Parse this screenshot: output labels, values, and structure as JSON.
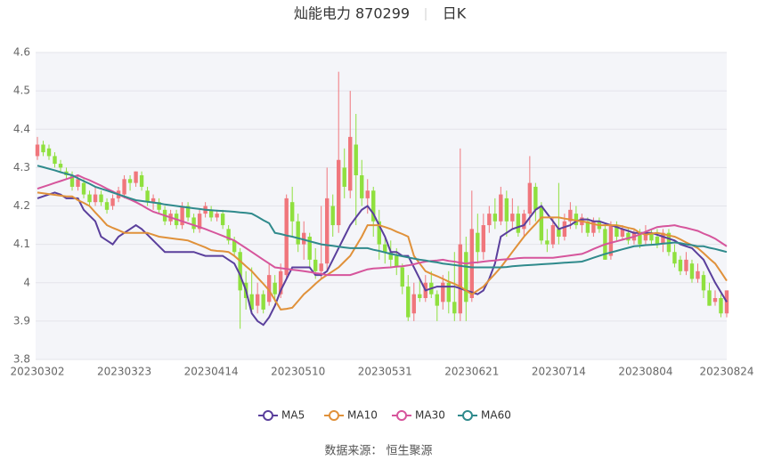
{
  "chart_data": {
    "type": "candlestick",
    "title": "灿能电力 870299",
    "period": "日K",
    "source": "数据来源： 恒生聚源",
    "up_color": "#f0767c",
    "down_color": "#8fe03e",
    "grid": true,
    "plot_background": "#f4f5f9",
    "ylim": [
      3.8,
      4.6
    ],
    "yticks": [
      3.8,
      3.9,
      4,
      4.1,
      4.2,
      4.3,
      4.4,
      4.5,
      4.6
    ],
    "categories": [
      "20230302",
      null,
      null,
      null,
      null,
      null,
      null,
      null,
      null,
      null,
      null,
      null,
      null,
      null,
      null,
      "20230323",
      null,
      null,
      null,
      null,
      null,
      null,
      null,
      null,
      null,
      null,
      null,
      null,
      null,
      null,
      "20230414",
      null,
      null,
      null,
      null,
      null,
      null,
      null,
      null,
      null,
      null,
      null,
      null,
      null,
      null,
      "20230510",
      null,
      null,
      null,
      null,
      null,
      null,
      null,
      null,
      null,
      null,
      null,
      null,
      null,
      null,
      "20230531",
      null,
      null,
      null,
      null,
      null,
      null,
      null,
      null,
      null,
      null,
      null,
      null,
      null,
      null,
      "20230621",
      null,
      null,
      null,
      null,
      null,
      null,
      null,
      null,
      null,
      null,
      null,
      null,
      null,
      null,
      "20230714",
      null,
      null,
      null,
      null,
      null,
      null,
      null,
      null,
      null,
      null,
      null,
      null,
      null,
      null,
      "20230804",
      null,
      null,
      null,
      null,
      null,
      null,
      null,
      null,
      null,
      null,
      null,
      null,
      null,
      "20230824"
    ],
    "candles": [
      [
        4.33,
        4.36,
        4.32,
        4.38
      ],
      [
        4.36,
        4.34,
        4.33,
        4.37
      ],
      [
        4.35,
        4.33,
        4.32,
        4.36
      ],
      [
        4.33,
        4.31,
        4.3,
        4.34
      ],
      [
        4.31,
        4.3,
        4.29,
        4.32
      ],
      [
        4.29,
        4.28,
        4.27,
        4.3
      ],
      [
        4.28,
        4.25,
        4.24,
        4.29
      ],
      [
        4.25,
        4.27,
        4.24,
        4.28
      ],
      [
        4.26,
        4.23,
        4.22,
        4.27
      ],
      [
        4.23,
        4.21,
        4.2,
        4.24
      ],
      [
        4.21,
        4.23,
        4.2,
        4.25
      ],
      [
        4.23,
        4.21,
        4.2,
        4.24
      ],
      [
        4.21,
        4.19,
        4.18,
        4.22
      ],
      [
        4.2,
        4.22,
        4.19,
        4.23
      ],
      [
        4.22,
        4.24,
        4.21,
        4.25
      ],
      [
        4.23,
        4.27,
        4.22,
        4.28
      ],
      [
        4.27,
        4.26,
        4.24,
        4.28
      ],
      [
        4.26,
        4.29,
        4.25,
        4.29
      ],
      [
        4.28,
        4.25,
        4.24,
        4.29
      ],
      [
        4.24,
        4.21,
        4.2,
        4.25
      ],
      [
        4.21,
        4.22,
        4.19,
        4.23
      ],
      [
        4.21,
        4.19,
        4.18,
        4.22
      ],
      [
        4.19,
        4.16,
        4.15,
        4.2
      ],
      [
        4.16,
        4.18,
        4.15,
        4.19
      ],
      [
        4.18,
        4.15,
        4.14,
        4.19
      ],
      [
        4.15,
        4.2,
        4.14,
        4.21
      ],
      [
        4.2,
        4.17,
        4.16,
        4.21
      ],
      [
        4.17,
        4.14,
        4.13,
        4.18
      ],
      [
        4.14,
        4.18,
        4.13,
        4.19
      ],
      [
        4.18,
        4.2,
        4.17,
        4.21
      ],
      [
        4.19,
        4.17,
        4.16,
        4.2
      ],
      [
        4.17,
        4.18,
        4.16,
        4.19
      ],
      [
        4.18,
        4.15,
        4.14,
        4.19
      ],
      [
        4.14,
        4.11,
        4.1,
        4.15
      ],
      [
        4.11,
        4.08,
        4.07,
        4.12
      ],
      [
        4.08,
        3.98,
        3.88,
        4.09
      ],
      [
        4.0,
        3.96,
        3.93,
        4.03
      ],
      [
        3.97,
        3.93,
        3.92,
        4.04
      ],
      [
        3.94,
        3.97,
        3.92,
        4.0
      ],
      [
        3.97,
        3.93,
        3.92,
        3.98
      ],
      [
        3.95,
        4.02,
        3.94,
        4.05
      ],
      [
        4.0,
        3.97,
        3.95,
        4.02
      ],
      [
        3.97,
        4.03,
        3.96,
        4.05
      ],
      [
        4.02,
        4.22,
        4.01,
        4.23
      ],
      [
        4.21,
        4.16,
        4.12,
        4.25
      ],
      [
        4.16,
        4.1,
        4.08,
        4.18
      ],
      [
        4.1,
        4.13,
        4.06,
        4.16
      ],
      [
        4.12,
        4.06,
        4.04,
        4.13
      ],
      [
        4.06,
        4.03,
        4.01,
        4.09
      ],
      [
        4.03,
        4.05,
        4.01,
        4.2
      ],
      [
        4.05,
        4.22,
        4.03,
        4.3
      ],
      [
        4.2,
        4.15,
        4.12,
        4.23
      ],
      [
        4.15,
        4.32,
        4.13,
        4.55
      ],
      [
        4.3,
        4.25,
        4.22,
        4.35
      ],
      [
        4.24,
        4.38,
        4.22,
        4.5
      ],
      [
        4.36,
        4.28,
        4.15,
        4.44
      ],
      [
        4.28,
        4.22,
        4.2,
        4.32
      ],
      [
        4.22,
        4.24,
        4.18,
        4.27
      ],
      [
        4.24,
        4.16,
        4.12,
        4.25
      ],
      [
        4.16,
        4.1,
        4.06,
        4.19
      ],
      [
        4.1,
        4.08,
        4.05,
        4.12
      ],
      [
        4.08,
        4.06,
        4.04,
        4.11
      ],
      [
        4.07,
        4.04,
        4.02,
        4.09
      ],
      [
        4.04,
        3.99,
        3.97,
        4.05
      ],
      [
        3.99,
        3.91,
        3.9,
        4.02
      ],
      [
        3.92,
        3.97,
        3.9,
        4.0
      ],
      [
        3.97,
        3.96,
        3.95,
        4.01
      ],
      [
        3.96,
        4.0,
        3.95,
        4.02
      ],
      [
        4.0,
        3.97,
        3.96,
        4.03
      ],
      [
        3.97,
        3.94,
        3.9,
        3.98
      ],
      [
        3.95,
        4.0,
        3.93,
        4.02
      ],
      [
        4.0,
        3.95,
        3.92,
        4.03
      ],
      [
        3.95,
        3.92,
        3.9,
        4.08
      ],
      [
        3.92,
        4.1,
        3.9,
        4.35
      ],
      [
        4.08,
        3.95,
        3.9,
        4.12
      ],
      [
        3.96,
        4.14,
        3.95,
        4.24
      ],
      [
        4.13,
        4.08,
        4.05,
        4.18
      ],
      [
        4.08,
        4.15,
        4.06,
        4.18
      ],
      [
        4.15,
        4.18,
        4.13,
        4.2
      ],
      [
        4.18,
        4.16,
        4.14,
        4.22
      ],
      [
        4.16,
        4.23,
        4.15,
        4.25
      ],
      [
        4.22,
        4.16,
        4.12,
        4.24
      ],
      [
        4.16,
        4.18,
        4.14,
        4.22
      ],
      [
        4.18,
        4.13,
        4.12,
        4.2
      ],
      [
        4.14,
        4.18,
        4.12,
        4.19
      ],
      [
        4.18,
        4.26,
        4.15,
        4.33
      ],
      [
        4.25,
        4.19,
        4.16,
        4.26
      ],
      [
        4.2,
        4.11,
        4.1,
        4.21
      ],
      [
        4.11,
        4.1,
        4.08,
        4.14
      ],
      [
        4.1,
        4.15,
        4.09,
        4.17
      ],
      [
        4.14,
        4.12,
        4.1,
        4.26
      ],
      [
        4.12,
        4.16,
        4.11,
        4.18
      ],
      [
        4.16,
        4.19,
        4.14,
        4.21
      ],
      [
        4.18,
        4.15,
        4.14,
        4.2
      ],
      [
        4.15,
        4.17,
        4.13,
        4.18
      ],
      [
        4.16,
        4.13,
        4.12,
        4.17
      ],
      [
        4.13,
        4.16,
        4.12,
        4.17
      ],
      [
        4.16,
        4.14,
        4.13,
        4.17
      ],
      [
        4.14,
        4.06,
        4.06,
        4.15
      ],
      [
        4.07,
        4.15,
        4.06,
        4.16
      ],
      [
        4.15,
        4.12,
        4.11,
        4.16
      ],
      [
        4.12,
        4.14,
        4.11,
        4.15
      ],
      [
        4.13,
        4.11,
        4.1,
        4.14
      ],
      [
        4.11,
        4.13,
        4.1,
        4.14
      ],
      [
        4.13,
        4.1,
        4.09,
        4.14
      ],
      [
        4.11,
        4.13,
        4.1,
        4.15
      ],
      [
        4.13,
        4.11,
        4.1,
        4.14
      ],
      [
        4.12,
        4.1,
        4.09,
        4.14
      ],
      [
        4.1,
        4.13,
        4.08,
        4.14
      ],
      [
        4.13,
        4.08,
        4.07,
        4.14
      ],
      [
        4.08,
        4.05,
        4.04,
        4.1
      ],
      [
        4.06,
        4.03,
        4.02,
        4.07
      ],
      [
        4.03,
        4.06,
        4.02,
        4.08
      ],
      [
        4.05,
        4.01,
        4.0,
        4.06
      ],
      [
        4.01,
        4.03,
        4.0,
        4.05
      ],
      [
        4.02,
        3.98,
        3.96,
        4.03
      ],
      [
        3.98,
        3.94,
        3.94,
        4.0
      ],
      [
        3.95,
        3.96,
        3.94,
        3.98
      ],
      [
        3.96,
        3.92,
        3.91,
        3.97
      ],
      [
        3.92,
        3.98,
        3.91,
        3.98
      ]
    ],
    "series": [
      {
        "name": "MA5",
        "color": "#5a3f9c",
        "values": [
          4.22,
          4.225,
          4.23,
          4.235,
          4.23,
          4.22,
          4.22,
          4.22,
          4.19,
          4.175,
          4.16,
          4.12,
          4.11,
          4.1,
          4.12,
          4.13,
          4.14,
          4.15,
          4.14,
          4.125,
          4.11,
          4.095,
          4.08,
          4.08,
          4.08,
          4.08,
          4.08,
          4.08,
          4.075,
          4.07,
          4.07,
          4.07,
          4.07,
          4.06,
          4.05,
          4.02,
          3.98,
          3.92,
          3.9,
          3.89,
          3.91,
          3.94,
          3.98,
          4.01,
          4.04,
          4.04,
          4.04,
          4.04,
          4.02,
          4.02,
          4.03,
          4.06,
          4.09,
          4.12,
          4.15,
          4.17,
          4.19,
          4.2,
          4.18,
          4.15,
          4.12,
          4.08,
          4.08,
          4.07,
          4.07,
          4.04,
          4.01,
          3.98,
          3.985,
          3.99,
          3.99,
          3.99,
          3.99,
          3.985,
          3.98,
          3.975,
          3.97,
          3.98,
          4.01,
          4.05,
          4.12,
          4.13,
          4.14,
          4.145,
          4.15,
          4.17,
          4.19,
          4.2,
          4.18,
          4.16,
          4.14,
          4.145,
          4.15,
          4.16,
          4.165,
          4.165,
          4.16,
          4.16,
          4.155,
          4.15,
          4.145,
          4.14,
          4.135,
          4.13,
          4.13,
          4.13,
          4.13,
          4.125,
          4.12,
          4.115,
          4.11,
          4.1,
          4.095,
          4.09,
          4.075,
          4.06,
          4.03,
          4.0,
          3.975,
          3.95
        ]
      },
      {
        "name": "MA10",
        "color": "#e0913a",
        "values": [
          4.235,
          4.233,
          4.231,
          4.229,
          4.227,
          4.225,
          4.225,
          4.215,
          4.208,
          4.2,
          4.183,
          4.167,
          4.15,
          4.143,
          4.137,
          4.13,
          4.13,
          4.13,
          4.13,
          4.13,
          4.125,
          4.12,
          4.118,
          4.116,
          4.114,
          4.112,
          4.11,
          4.104,
          4.098,
          4.092,
          4.085,
          4.083,
          4.082,
          4.08,
          4.07,
          4.057,
          4.043,
          4.03,
          4.013,
          3.997,
          3.98,
          3.955,
          3.93,
          3.932,
          3.935,
          3.952,
          3.97,
          3.983,
          3.997,
          4.01,
          4.02,
          4.03,
          4.04,
          4.055,
          4.07,
          4.095,
          4.12,
          4.15,
          4.15,
          4.15,
          4.145,
          4.14,
          4.133,
          4.127,
          4.12,
          4.07,
          4.05,
          4.03,
          4.023,
          4.017,
          4.01,
          4.003,
          3.997,
          3.99,
          3.98,
          3.97,
          3.98,
          3.99,
          4.007,
          4.023,
          4.04,
          4.06,
          4.08,
          4.1,
          4.12,
          4.137,
          4.153,
          4.17,
          4.17,
          4.17,
          4.17,
          4.167,
          4.165,
          4.162,
          4.16,
          4.157,
          4.153,
          4.15,
          4.15,
          4.15,
          4.15,
          4.147,
          4.143,
          4.14,
          4.13,
          4.125,
          4.128,
          4.13,
          4.127,
          4.123,
          4.12,
          4.113,
          4.105,
          4.098,
          4.09,
          4.077,
          4.063,
          4.05,
          4.028,
          4.005
        ]
      },
      {
        "name": "MA30",
        "color": "#d6559c",
        "values": [
          4.245,
          4.25,
          4.255,
          4.26,
          4.265,
          4.27,
          4.275,
          4.28,
          4.273,
          4.267,
          4.26,
          4.253,
          4.245,
          4.238,
          4.23,
          4.223,
          4.217,
          4.21,
          4.202,
          4.193,
          4.185,
          4.18,
          4.175,
          4.17,
          4.165,
          4.16,
          4.155,
          4.15,
          4.145,
          4.14,
          4.134,
          4.128,
          4.122,
          4.116,
          4.11,
          4.1,
          4.09,
          4.08,
          4.07,
          4.06,
          4.05,
          4.04,
          4.038,
          4.036,
          4.034,
          4.032,
          4.03,
          4.028,
          4.025,
          4.023,
          4.02,
          4.02,
          4.02,
          4.02,
          4.02,
          4.025,
          4.03,
          4.035,
          4.037,
          4.038,
          4.039,
          4.04,
          4.042,
          4.043,
          4.045,
          4.048,
          4.052,
          4.055,
          4.057,
          4.058,
          4.06,
          4.057,
          4.055,
          4.052,
          4.05,
          4.052,
          4.053,
          4.055,
          4.057,
          4.058,
          4.06,
          4.061,
          4.062,
          4.064,
          4.065,
          4.065,
          4.065,
          4.065,
          4.065,
          4.065,
          4.067,
          4.069,
          4.071,
          4.073,
          4.075,
          4.081,
          4.088,
          4.094,
          4.1,
          4.104,
          4.108,
          4.112,
          4.116,
          4.12,
          4.126,
          4.133,
          4.139,
          4.145,
          4.147,
          4.148,
          4.15,
          4.146,
          4.143,
          4.139,
          4.135,
          4.128,
          4.122,
          4.115,
          4.105,
          4.095
        ]
      },
      {
        "name": "MA60",
        "color": "#2f8a8c",
        "values": [
          4.305,
          4.301,
          4.297,
          4.293,
          4.288,
          4.284,
          4.28,
          4.272,
          4.265,
          4.258,
          4.25,
          4.245,
          4.24,
          4.235,
          4.23,
          4.225,
          4.22,
          4.215,
          4.213,
          4.211,
          4.209,
          4.207,
          4.204,
          4.202,
          4.2,
          4.198,
          4.196,
          4.194,
          4.192,
          4.19,
          4.189,
          4.188,
          4.187,
          4.186,
          4.185,
          4.183,
          4.182,
          4.18,
          4.172,
          4.163,
          4.155,
          4.13,
          4.127,
          4.123,
          4.12,
          4.116,
          4.112,
          4.108,
          4.104,
          4.1,
          4.098,
          4.096,
          4.094,
          4.092,
          4.09,
          4.09,
          4.09,
          4.09,
          4.086,
          4.083,
          4.079,
          4.075,
          4.072,
          4.069,
          4.066,
          4.063,
          4.06,
          4.058,
          4.055,
          4.053,
          4.05,
          4.048,
          4.046,
          4.044,
          4.042,
          4.04,
          4.04,
          4.04,
          4.04,
          4.04,
          4.04,
          4.041,
          4.043,
          4.044,
          4.045,
          4.046,
          4.047,
          4.048,
          4.049,
          4.05,
          4.051,
          4.052,
          4.053,
          4.054,
          4.055,
          4.06,
          4.065,
          4.07,
          4.075,
          4.079,
          4.083,
          4.087,
          4.091,
          4.095,
          4.096,
          4.098,
          4.099,
          4.1,
          4.102,
          4.103,
          4.105,
          4.103,
          4.1,
          4.098,
          4.095,
          4.095,
          4.091,
          4.088,
          4.084,
          4.08
        ]
      }
    ]
  }
}
